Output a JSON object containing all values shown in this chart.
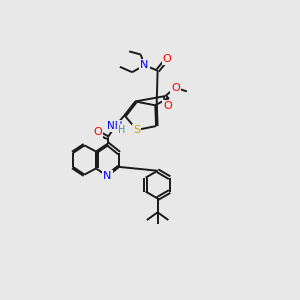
{
  "bg_color": "#e8e8e8",
  "bond_color": "#1a1a1a",
  "atom_colors": {
    "N": "#0000ff",
    "O": "#ff0000",
    "S": "#ccaa00",
    "H": "#4a9090",
    "C": "#1a1a1a"
  },
  "font_size": 7.5,
  "lw": 1.4
}
